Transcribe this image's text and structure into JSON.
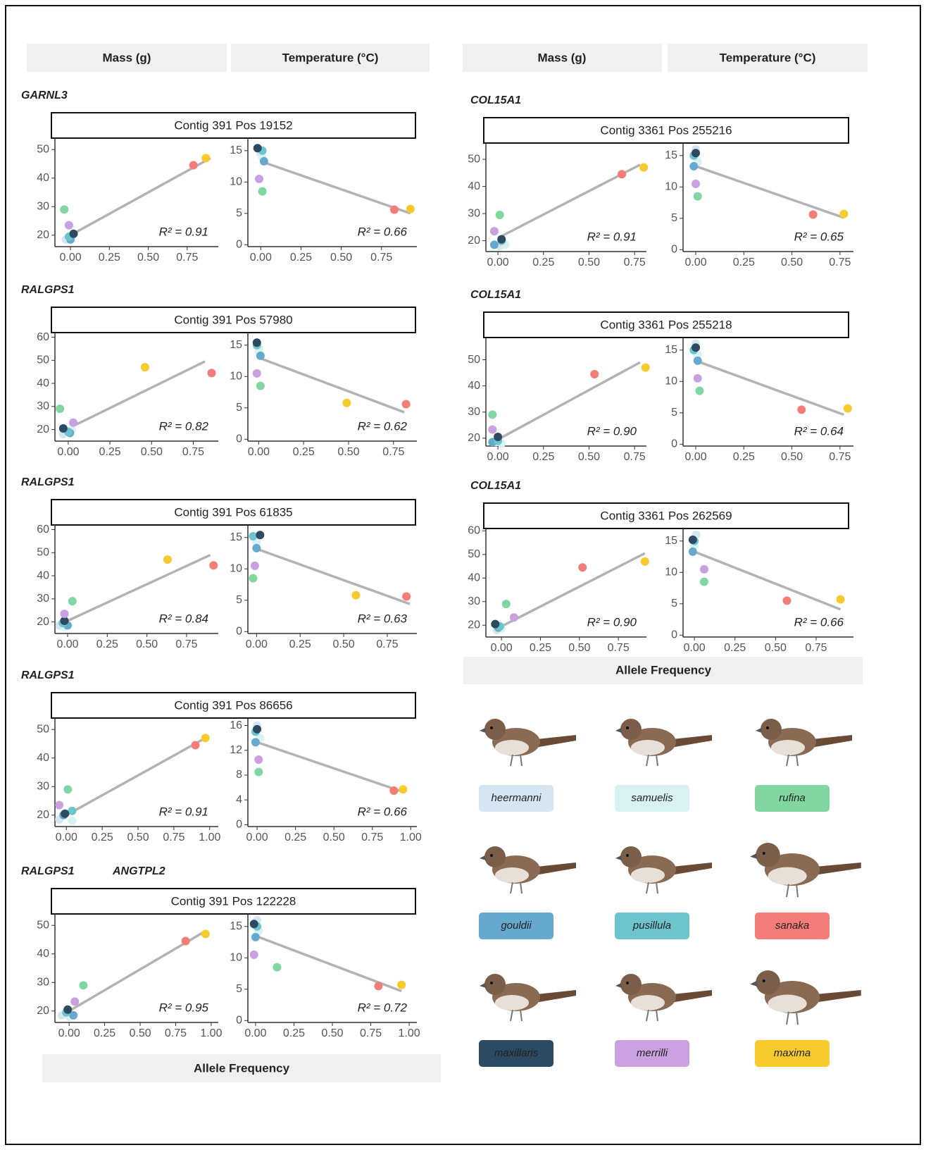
{
  "left_headers": [
    "Mass (g)",
    "Temperature (°C)"
  ],
  "right_headers": [
    "Mass (g)",
    "Temperature (°C)"
  ],
  "left_x_label": "Allele Frequency",
  "right_x_label": "Allele Frequency",
  "subspecies": [
    {
      "name": "heermanni",
      "color": "#d5e5f2"
    },
    {
      "name": "samuelis",
      "color": "#d7f2f1"
    },
    {
      "name": "rufina",
      "color": "#82d6a2"
    },
    {
      "name": "gouldii",
      "color": "#66a9cf"
    },
    {
      "name": "pusillula",
      "color": "#6ec4cd"
    },
    {
      "name": "sanaka",
      "color": "#f47d7a"
    },
    {
      "name": "maxillaris",
      "color": "#2d4a63"
    },
    {
      "name": "merrilli",
      "color": "#c9a1e1"
    },
    {
      "name": "maxima",
      "color": "#f7cb2d"
    }
  ],
  "chart_data": [
    {
      "type": "scatter",
      "genes": [
        "GARNL3"
      ],
      "title": "Contig 391 Pos 19152",
      "plots": [
        {
          "xlim": [
            -0.1,
            0.95
          ],
          "ylim": [
            16,
            54
          ],
          "xticks": [
            {
              "value": 0,
              "label": "0.00"
            },
            0.25,
            {
              "value": 0.5,
              "label": "0.50"
            },
            0.75
          ],
          "yticks": [
            20,
            30,
            40,
            50
          ],
          "x": [
            -0.03,
            0.01,
            -0.04,
            0.0,
            -0.01,
            0.79,
            0.02,
            -0.01,
            0.87
          ],
          "y": [
            18.5,
            20,
            29,
            18.5,
            19.5,
            44.5,
            20.5,
            23.5,
            47
          ],
          "fit_x": [
            0,
            0.9
          ],
          "fit_y": [
            20,
            47
          ],
          "annotation": "R² = 0.91"
        },
        {
          "xlim": [
            -0.08,
            0.97
          ],
          "ylim": [
            -0.3,
            17
          ],
          "xticks": [
            {
              "value": 0,
              "label": "0.00"
            },
            0.25,
            {
              "value": 0.5,
              "label": "0.50"
            },
            0.75
          ],
          "yticks": [
            0,
            5,
            10,
            15
          ],
          "x": [
            0.0,
            0.01,
            0.01,
            0.02,
            0.01,
            0.83,
            -0.02,
            -0.01,
            0.93
          ],
          "y": [
            14.5,
            14,
            8.5,
            13.3,
            15,
            5.6,
            15.4,
            10.5,
            5.7
          ],
          "fit_x": [
            0,
            0.93
          ],
          "fit_y": [
            13.3,
            5.0
          ],
          "annotation": "R² = 0.66"
        }
      ]
    },
    {
      "type": "scatter",
      "genes": [
        "RALGPS1"
      ],
      "title": "Contig 391 Pos 57980",
      "plots": [
        {
          "xlim": [
            -0.08,
            0.9
          ],
          "ylim": [
            15,
            62
          ],
          "xticks": [
            {
              "value": 0,
              "label": "0.00"
            },
            0.25,
            {
              "value": 0.5,
              "label": "0.50"
            },
            0.75
          ],
          "yticks": [
            20,
            30,
            40,
            50,
            60
          ],
          "x": [
            -0.03,
            0.02,
            -0.05,
            0.01,
            0.0,
            0.86,
            -0.03,
            0.03,
            0.46
          ],
          "y": [
            18,
            20,
            29,
            18.5,
            19,
            44.5,
            20.5,
            23,
            47
          ],
          "fit_x": [
            0,
            0.82
          ],
          "fit_y": [
            20.5,
            49.5
          ],
          "annotation": "R² = 0.82"
        },
        {
          "xlim": [
            -0.06,
            0.88
          ],
          "ylim": [
            -0.3,
            17
          ],
          "xticks": [
            {
              "value": 0,
              "label": "0.00"
            },
            0.25,
            {
              "value": 0.5,
              "label": "0.50"
            },
            0.75
          ],
          "yticks": [
            0,
            5,
            10,
            15
          ],
          "x": [
            0.0,
            0.0,
            0.01,
            0.01,
            -0.01,
            0.82,
            -0.01,
            -0.01,
            0.49
          ],
          "y": [
            14.5,
            14,
            8.5,
            13.3,
            15,
            5.6,
            15.4,
            10.5,
            5.8
          ],
          "fit_x": [
            0,
            0.81
          ],
          "fit_y": [
            13,
            4.3
          ],
          "annotation": "R² = 0.62"
        }
      ]
    },
    {
      "type": "scatter",
      "genes": [
        "RALGPS1"
      ],
      "title": "Contig 391 Pos 61835",
      "plots": [
        {
          "xlim": [
            -0.08,
            0.95
          ],
          "ylim": [
            15,
            62
          ],
          "xticks": [
            {
              "value": 0,
              "label": "0.00"
            },
            0.25,
            {
              "value": 0.5,
              "label": "0.50"
            },
            0.75
          ],
          "yticks": [
            20,
            30,
            40,
            50,
            60
          ],
          "x": [
            -0.05,
            -0.02,
            0.03,
            0.0,
            -0.03,
            0.92,
            -0.02,
            -0.02,
            0.63
          ],
          "y": [
            18.5,
            18,
            29,
            18.5,
            19.5,
            44.5,
            20.5,
            23.5,
            47
          ],
          "fit_x": [
            0,
            0.9
          ],
          "fit_y": [
            20.5,
            49
          ],
          "annotation": "R² = 0.84"
        },
        {
          "xlim": [
            -0.05,
            0.92
          ],
          "ylim": [
            -0.3,
            17
          ],
          "xticks": [
            {
              "value": 0,
              "label": "0.00"
            },
            0.25,
            {
              "value": 0.5,
              "label": "0.50"
            },
            0.75
          ],
          "yticks": [
            0,
            5,
            10,
            15
          ],
          "x": [
            -0.01,
            0.0,
            -0.02,
            0.0,
            -0.02,
            0.86,
            0.02,
            -0.01,
            0.57
          ],
          "y": [
            15,
            14.3,
            8.5,
            13.3,
            15.2,
            5.6,
            15.4,
            10.5,
            5.8
          ],
          "fit_x": [
            0,
            0.88
          ],
          "fit_y": [
            13.2,
            4.4
          ],
          "annotation": "R² = 0.63"
        }
      ]
    },
    {
      "type": "scatter",
      "genes": [
        "RALGPS1"
      ],
      "title": "Contig 391 Pos 86656",
      "plots": [
        {
          "xlim": [
            -0.08,
            1.06
          ],
          "ylim": [
            16,
            54
          ],
          "xticks": [
            {
              "value": 0,
              "label": "0.00"
            },
            0.25,
            {
              "value": 0.5,
              "label": "0.50"
            },
            0.75,
            {
              "value": 1,
              "label": "1.00"
            }
          ],
          "yticks": [
            20,
            30,
            40,
            50
          ],
          "x": [
            -0.05,
            0.04,
            0.01,
            -0.02,
            0.04,
            0.9,
            -0.01,
            -0.05,
            0.97
          ],
          "y": [
            18.5,
            18,
            29,
            20,
            21.5,
            44.5,
            20.5,
            23.5,
            47
          ],
          "fit_x": [
            0,
            0.97
          ],
          "fit_y": [
            20,
            47
          ],
          "annotation": "R² = 0.91"
        },
        {
          "xlim": [
            -0.06,
            1.04
          ],
          "ylim": [
            -0.3,
            17.2
          ],
          "xticks": [
            {
              "value": 0,
              "label": "0.00"
            },
            0.25,
            {
              "value": 0.5,
              "label": "0.50"
            },
            0.75,
            {
              "value": 1,
              "label": "1.00"
            }
          ],
          "yticks": [
            0,
            4,
            8,
            12,
            16
          ],
          "x": [
            0.0,
            0.02,
            0.01,
            -0.01,
            -0.01,
            0.89,
            0.0,
            0.01,
            0.95
          ],
          "y": [
            16,
            14,
            8.5,
            13.3,
            15,
            5.5,
            15.4,
            10.5,
            5.7
          ],
          "fit_x": [
            0,
            0.95
          ],
          "fit_y": [
            13.3,
            5.3
          ],
          "annotation": "R² = 0.66"
        }
      ]
    },
    {
      "type": "scatter",
      "genes": [
        "RALGPS1",
        "ANGTPL2"
      ],
      "title": "Contig 391 Pos 122228",
      "plots": [
        {
          "xlim": [
            -0.1,
            1.05
          ],
          "ylim": [
            16,
            54
          ],
          "xticks": [
            {
              "value": 0,
              "label": "0.00"
            },
            0.25,
            {
              "value": 0.5,
              "label": "0.50"
            },
            0.75,
            {
              "value": 1,
              "label": "1.00"
            }
          ],
          "yticks": [
            20,
            30,
            40,
            50
          ],
          "x": [
            -0.05,
            0.0,
            0.1,
            0.03,
            -0.02,
            0.82,
            -0.01,
            0.04,
            0.96
          ],
          "y": [
            18.5,
            18,
            29,
            18.5,
            19.5,
            44.5,
            20.5,
            23.3,
            47
          ],
          "fit_x": [
            0,
            0.96
          ],
          "fit_y": [
            20,
            48
          ],
          "annotation": "R² = 0.95"
        },
        {
          "xlim": [
            -0.05,
            1.05
          ],
          "ylim": [
            -0.3,
            17
          ],
          "xticks": [
            {
              "value": 0,
              "label": "0.00"
            },
            0.25,
            {
              "value": 0.5,
              "label": "0.50"
            },
            0.75,
            {
              "value": 1,
              "label": "1.00"
            }
          ],
          "yticks": [
            0,
            5,
            10,
            15
          ],
          "x": [
            0.01,
            0.02,
            0.14,
            0.0,
            0.01,
            0.8,
            -0.01,
            -0.01,
            0.95
          ],
          "y": [
            16,
            14.3,
            8.5,
            13.3,
            15,
            5.5,
            15.4,
            10.5,
            5.7
          ],
          "fit_x": [
            0,
            0.95
          ],
          "fit_y": [
            13.5,
            4.7
          ],
          "annotation": "R² = 0.72"
        }
      ]
    },
    {
      "type": "scatter",
      "genes": [
        "COL15A1"
      ],
      "title": "Contig 3361 Pos 255216",
      "plots": [
        {
          "xlim": [
            -0.066,
            0.815
          ],
          "ylim": [
            16,
            56
          ],
          "xticks": [
            {
              "value": 0,
              "label": "0.00"
            },
            0.25,
            {
              "value": 0.5,
              "label": "0.50"
            },
            0.75
          ],
          "yticks": [
            20,
            30,
            40,
            50
          ],
          "x": [
            0.01,
            0.04,
            0.01,
            -0.02,
            0.02,
            0.68,
            0.02,
            -0.02,
            0.8
          ],
          "y": [
            18,
            18.5,
            29.5,
            18.5,
            20,
            44.5,
            20.5,
            23.5,
            47
          ],
          "fit_x": [
            0,
            0.78
          ],
          "fit_y": [
            21,
            48
          ],
          "annotation": "R² = 0.91"
        },
        {
          "xlim": [
            -0.066,
            0.82
          ],
          "ylim": [
            -0.3,
            17
          ],
          "xticks": [
            {
              "value": 0,
              "label": "0.00"
            },
            0.25,
            {
              "value": 0.5,
              "label": "0.50"
            },
            0.75
          ],
          "yticks": [
            0,
            5,
            10,
            15
          ],
          "x": [
            0.0,
            0.01,
            0.01,
            -0.01,
            -0.01,
            0.61,
            0.0,
            0.0,
            0.77
          ],
          "y": [
            16,
            14,
            8.5,
            13.3,
            15,
            5.6,
            15.4,
            10.5,
            5.7
          ],
          "fit_x": [
            0,
            0.77
          ],
          "fit_y": [
            13.3,
            5.1
          ],
          "annotation": "R² = 0.65"
        }
      ]
    },
    {
      "type": "scatter",
      "genes": [
        "COL15A1"
      ],
      "title": "Contig 3361 Pos 255218",
      "plots": [
        {
          "xlim": [
            -0.066,
            0.815
          ],
          "ylim": [
            17,
            58.5
          ],
          "xticks": [
            {
              "value": 0,
              "label": "0.00"
            },
            0.25,
            {
              "value": 0.5,
              "label": "0.50"
            },
            0.75
          ],
          "yticks": [
            20,
            30,
            40,
            50
          ],
          "x": [
            -0.01,
            0.02,
            -0.03,
            -0.03,
            0.0,
            0.53,
            0.0,
            -0.03,
            0.81
          ],
          "y": [
            18.5,
            18,
            29,
            18.5,
            19,
            44.5,
            20.5,
            23.3,
            47
          ],
          "fit_x": [
            0,
            0.78
          ],
          "fit_y": [
            19.5,
            49
          ],
          "annotation": "R² = 0.90"
        },
        {
          "xlim": [
            -0.066,
            0.82
          ],
          "ylim": [
            -0.3,
            17
          ],
          "xticks": [
            {
              "value": 0,
              "label": "0.00"
            },
            0.25,
            {
              "value": 0.5,
              "label": "0.50"
            },
            0.75
          ],
          "yticks": [
            0,
            5,
            10,
            15
          ],
          "x": [
            0.0,
            0.01,
            0.02,
            0.01,
            -0.01,
            0.55,
            0.0,
            0.01,
            0.79
          ],
          "y": [
            16,
            14.2,
            8.5,
            13.3,
            15,
            5.5,
            15.4,
            10.5,
            5.7
          ],
          "fit_x": [
            0,
            0.77
          ],
          "fit_y": [
            13.3,
            4.7
          ],
          "annotation": "R² = 0.64"
        }
      ]
    },
    {
      "type": "scatter",
      "genes": [
        "COL15A1"
      ],
      "title": "Contig 3361 Pos 262569",
      "plots": [
        {
          "xlim": [
            -0.1,
            0.93
          ],
          "ylim": [
            15,
            61
          ],
          "xticks": [
            {
              "value": 0,
              "label": "0.00"
            },
            0.25,
            {
              "value": 0.5,
              "label": "0.50"
            },
            0.75
          ],
          "yticks": [
            20,
            30,
            40,
            50,
            60
          ],
          "x": [
            -0.03,
            0.0,
            0.03,
            -0.02,
            -0.01,
            0.52,
            -0.04,
            0.08,
            0.92
          ],
          "y": [
            18,
            18.5,
            29,
            19,
            19.5,
            44.5,
            20.5,
            23.3,
            47
          ],
          "fit_x": [
            0,
            0.92
          ],
          "fit_y": [
            19.5,
            50.5
          ],
          "annotation": "R² = 0.90"
        },
        {
          "xlim": [
            -0.07,
            0.98
          ],
          "ylim": [
            -0.3,
            17
          ],
          "xticks": [
            {
              "value": 0,
              "label": "0.00"
            },
            0.25,
            {
              "value": 0.5,
              "label": "0.50"
            },
            0.75
          ],
          "yticks": [
            0,
            5,
            10,
            15
          ],
          "x": [
            0.01,
            0.0,
            0.06,
            -0.01,
            0.0,
            0.57,
            -0.01,
            0.06,
            0.9
          ],
          "y": [
            16,
            14.2,
            8.5,
            13.3,
            15,
            5.5,
            15.2,
            10.5,
            5.7
          ],
          "fit_x": [
            0,
            0.9
          ],
          "fit_y": [
            13.3,
            4.1
          ],
          "annotation": "R² = 0.66"
        }
      ]
    }
  ]
}
